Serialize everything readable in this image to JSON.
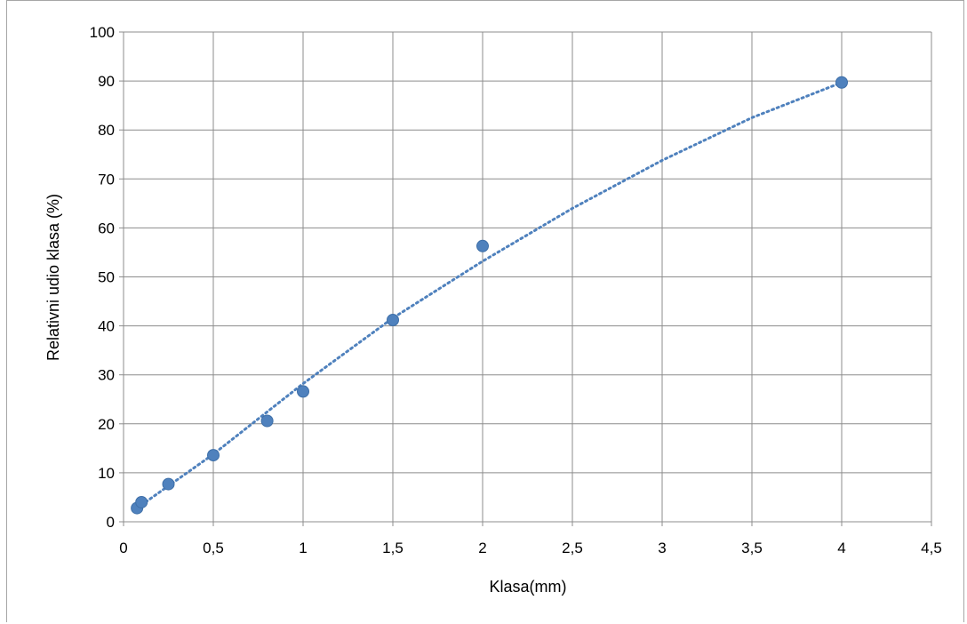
{
  "chart_data": {
    "type": "scatter",
    "title": "",
    "xlabel": "Klasa(mm)",
    "ylabel": "Relativni udio klasa (%)",
    "xlim": [
      0,
      4.5
    ],
    "ylim": [
      0,
      100
    ],
    "x_ticks": [
      "0",
      "0,5",
      "1",
      "1,5",
      "2",
      "2,5",
      "3",
      "3,5",
      "4",
      "4,5"
    ],
    "y_ticks": [
      "0",
      "10",
      "20",
      "30",
      "40",
      "50",
      "60",
      "70",
      "80",
      "90",
      "100"
    ],
    "grid": true,
    "legend": "none",
    "marker_color": "#4f81bd",
    "trendline_color": "#4f81bd",
    "trendline": "dotted",
    "series": [
      {
        "x": [
          0.075,
          0.1,
          0.25,
          0.5,
          0.8,
          1,
          1.5,
          2,
          4
        ],
        "y": [
          2.8,
          4.0,
          7.7,
          13.6,
          20.6,
          26.6,
          41.2,
          56.3,
          89.7
        ]
      }
    ],
    "trendline_points": {
      "x": [
        0.075,
        0.5,
        1,
        1.5,
        2,
        2.5,
        3,
        3.5,
        4
      ],
      "y": [
        2.8,
        13.8,
        28.2,
        41.6,
        53.2,
        64.0,
        73.8,
        82.5,
        89.7
      ]
    }
  }
}
